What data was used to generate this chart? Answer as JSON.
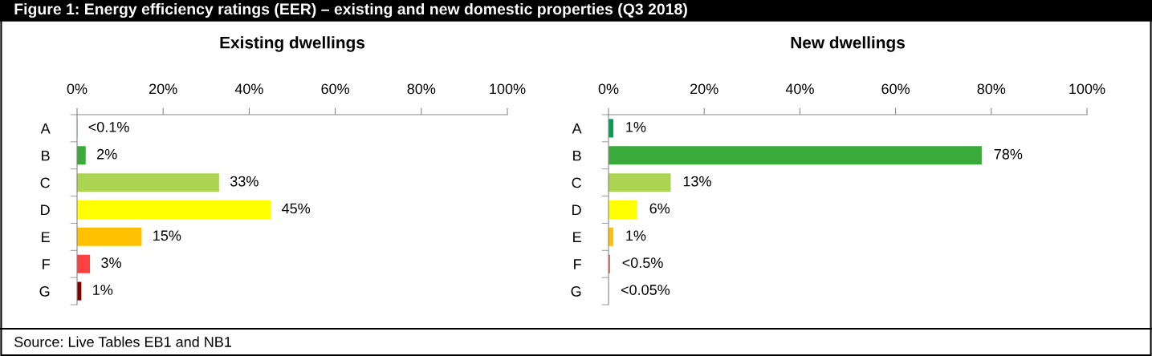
{
  "chart_data": [
    {
      "type": "bar",
      "orientation": "horizontal",
      "title": "Existing dwellings",
      "categories": [
        "A",
        "B",
        "C",
        "D",
        "E",
        "F",
        "G"
      ],
      "values": [
        0.05,
        2,
        33,
        45,
        15,
        3,
        1
      ],
      "colors": [
        "#00a050",
        "#3aaa3a",
        "#acd352",
        "#ffff00",
        "#ffc000",
        "#ff4040",
        "#800000"
      ],
      "value_labels": [
        "<0.1%",
        "2%",
        "33%",
        "45%",
        "15%",
        "3%",
        "1%"
      ],
      "xlim": [
        0,
        100
      ],
      "xticks": [
        {
          "value": 0,
          "label": "0%"
        },
        {
          "value": 20,
          "label": "20%"
        },
        {
          "value": 40,
          "label": "40%"
        },
        {
          "value": 60,
          "label": "60%"
        },
        {
          "value": 80,
          "label": "80%"
        },
        {
          "value": 100,
          "label": "100%"
        }
      ],
      "grid": false,
      "legend": false,
      "annotations": [
        "Figure 1: Energy efficiency ratings (EER) – existing and new domestic properties (Q3 2018)",
        "Source: Live Tables EB1 and NB1"
      ]
    },
    {
      "type": "bar",
      "orientation": "horizontal",
      "title": "New dwellings",
      "categories": [
        "A",
        "B",
        "C",
        "D",
        "E",
        "F",
        "G"
      ],
      "values": [
        1,
        78,
        13,
        6,
        1,
        0.3,
        0.02
      ],
      "colors": [
        "#00a050",
        "#3aaa3a",
        "#acd352",
        "#ffff00",
        "#ffc000",
        "#ff4040",
        "#800000"
      ],
      "value_labels": [
        "1%",
        "78%",
        "13%",
        "6%",
        "1%",
        "<0.5%",
        "<0.05%"
      ],
      "xlim": [
        0,
        100
      ],
      "xticks": [
        {
          "value": 0,
          "label": "0%"
        },
        {
          "value": 20,
          "label": "20%"
        },
        {
          "value": 40,
          "label": "40%"
        },
        {
          "value": 60,
          "label": "60%"
        },
        {
          "value": 80,
          "label": "80%"
        },
        {
          "value": 100,
          "label": "100%"
        }
      ],
      "grid": false,
      "legend": false
    }
  ]
}
